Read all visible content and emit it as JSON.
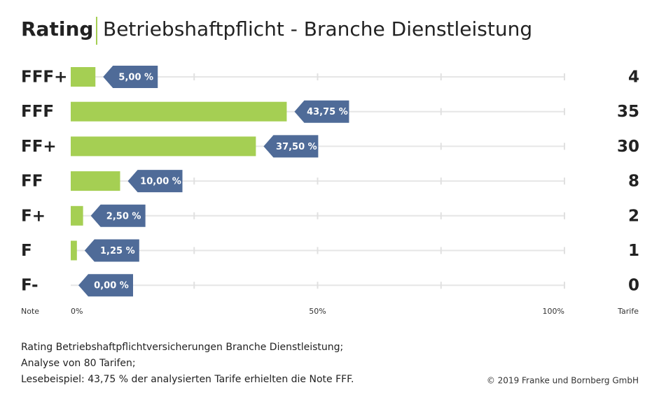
{
  "chart_data": {
    "type": "bar",
    "orientation": "horizontal",
    "title": "Rating",
    "subtitle": "Betriebshaftpflicht - Branche Dienstleistung",
    "categories": [
      "FFF+",
      "FFF",
      "FF+",
      "FF",
      "F+",
      "F",
      "F-"
    ],
    "values": [
      5,
      43.75,
      37.5,
      10,
      2.5,
      1.25,
      0
    ],
    "value_labels": [
      "5,00 %",
      "43,75 %",
      "37,50 %",
      "10,00 %",
      "2,50 %",
      "1,25 %",
      "0,00 %"
    ],
    "counts": [
      4,
      35,
      30,
      8,
      2,
      1,
      0
    ],
    "color": "#a5cf53",
    "label_color": "#4f6b98",
    "xlim": [
      0,
      100
    ],
    "xticks": [
      {
        "value": 0,
        "label": "0%"
      },
      {
        "value": 50,
        "label": "50%"
      },
      {
        "value": 100,
        "label": "100%"
      }
    ],
    "minor_xticks": [
      25,
      75
    ],
    "category_axis_label": "Note",
    "count_axis_label": "Tarife",
    "notes": [
      "Rating Betriebshaftpflichtversicherungen Branche Dienstleistung;",
      "Analyse von 80 Tarifen;",
      "Lesebeispiel: 43,75 % der analysierten Tarife erhielten die Note FFF."
    ],
    "source": "© 2019 Franke und Bornberg GmbH"
  }
}
